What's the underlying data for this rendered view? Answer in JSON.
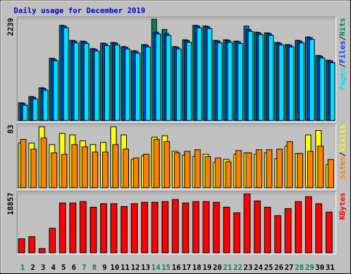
{
  "title": "Daily usage for December 2019",
  "title_color": "#0000cc",
  "legend_separator": "/",
  "chart_data": [
    {
      "type": "bar",
      "ylim": [
        0,
        2239
      ],
      "yticks": [
        2239
      ],
      "series": [
        {
          "name": "Pages",
          "color": "#00e0ff",
          "values": [
            340,
            475,
            670,
            1320,
            2048,
            1715,
            1700,
            1535,
            1655,
            1670,
            1580,
            1488,
            1625,
            1912,
            1880,
            1580,
            1730,
            2048,
            2033,
            1715,
            1730,
            1700,
            1972,
            1897,
            1882,
            1670,
            1625,
            1715,
            1790,
            1382,
            1276
          ]
        },
        {
          "name": "Files",
          "color": "#0040ff",
          "values": [
            380,
            515,
            710,
            1360,
            2088,
            1755,
            1740,
            1575,
            1695,
            1710,
            1620,
            1528,
            1665,
            1952,
            1920,
            1620,
            1770,
            2088,
            2073,
            1755,
            1770,
            1740,
            2012,
            1937,
            1922,
            1710,
            1665,
            1755,
            1830,
            1422,
            1316
          ]
        },
        {
          "name": "Hits",
          "color": "#00805c",
          "values": [
            393,
            530,
            726,
            1377,
            2103,
            1770,
            1755,
            1589,
            1710,
            1725,
            1634,
            1543,
            1679,
            2239,
            2012,
            1634,
            1785,
            2103,
            2088,
            1770,
            1785,
            1755,
            2088,
            1952,
            1937,
            1725,
            1679,
            1770,
            1846,
            1437,
            1331
          ]
        }
      ]
    },
    {
      "type": "bar",
      "ylim": [
        0,
        83
      ],
      "yticks": [
        83
      ],
      "series": [
        {
          "name": "Sites",
          "color": "#ff8000",
          "values": [
            65,
            52,
            67,
            47,
            45,
            58,
            55,
            48,
            48,
            58,
            52,
            40,
            45,
            65,
            62,
            47,
            49,
            51,
            42,
            40,
            35,
            50,
            47,
            51,
            51,
            52,
            62,
            46,
            49,
            56,
            38
          ]
        },
        {
          "name": "Visits",
          "color": "#ffff00",
          "values": [
            60,
            60,
            82,
            58,
            73,
            71,
            63,
            58,
            61,
            82,
            71,
            38,
            43,
            68,
            70,
            49,
            44,
            42,
            45,
            34,
            38,
            45,
            47,
            45,
            47,
            39,
            56,
            46,
            71,
            77,
            31
          ]
        }
      ]
    },
    {
      "type": "bar",
      "ylim": [
        0,
        18857
      ],
      "yticks": [
        18857
      ],
      "categories": [
        "1",
        "2",
        "3",
        "4",
        "5",
        "6",
        "7",
        "8",
        "9",
        "10",
        "11",
        "12",
        "13",
        "14",
        "15",
        "16",
        "17",
        "18",
        "19",
        "20",
        "21",
        "22",
        "23",
        "24",
        "25",
        "26",
        "27",
        "28",
        "29",
        "30",
        "31"
      ],
      "highlight_categories": [
        "1",
        "7",
        "8",
        "14",
        "15",
        "21",
        "22",
        "28",
        "29"
      ],
      "highlight_color": "#00805c",
      "series": [
        {
          "name": "KBytes",
          "color": "#ff0000",
          "values": [
            4490,
            5164,
            1347,
            7858,
            15940,
            15940,
            16389,
            14593,
            15715,
            15715,
            14817,
            15715,
            16164,
            16164,
            16389,
            17062,
            15940,
            16389,
            16389,
            16164,
            14593,
            12797,
            18857,
            16613,
            14593,
            11899,
            14144,
            16389,
            17960,
            15715,
            13021
          ]
        }
      ]
    }
  ]
}
